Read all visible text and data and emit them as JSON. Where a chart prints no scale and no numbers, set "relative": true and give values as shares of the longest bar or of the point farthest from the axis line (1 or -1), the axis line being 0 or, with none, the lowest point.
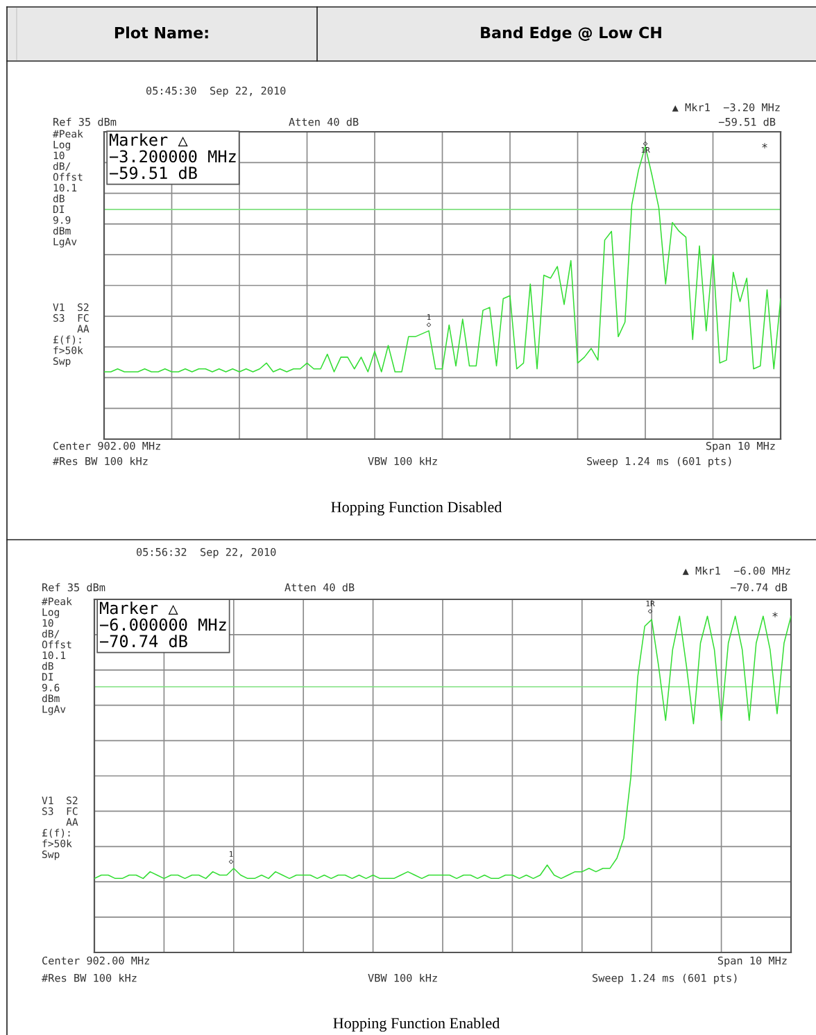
{
  "chart_data": [
    {
      "type": "line",
      "title": "Band Edge @ Low CH",
      "subtitle": "Plot Name:",
      "relative": true,
      "grid": true,
      "categories": [
        null,
        null,
        null,
        null,
        null,
        null,
        null,
        null,
        null,
        null,
        null,
        null,
        null,
        null,
        null,
        null,
        null,
        null,
        null,
        null,
        null,
        null,
        null,
        null,
        null,
        null,
        null,
        null,
        null,
        null,
        null,
        null,
        null,
        null,
        null,
        null,
        null,
        null,
        null,
        null,
        null,
        null,
        null,
        null,
        null,
        null,
        null,
        null,
        null,
        null,
        null,
        null,
        null,
        null,
        null,
        null,
        null,
        null,
        null,
        null,
        null,
        null,
        null,
        null,
        null,
        null,
        null,
        null,
        null,
        null,
        null,
        null,
        null,
        null,
        null,
        null,
        null,
        null,
        null,
        null,
        null,
        null,
        null,
        null,
        null,
        null,
        null,
        null,
        null,
        null,
        null,
        null,
        null,
        null,
        null,
        null,
        null,
        null,
        null,
        null,
        null
      ],
      "ref_lines": [
        {
          "axis": "y",
          "value": 0.785,
          "color": "#7ee07e"
        }
      ],
      "series": [
        {
          "color": "#33dd33",
          "values": [
            0.23,
            0.23,
            0.24,
            0.23,
            0.23,
            0.23,
            0.24,
            0.23,
            0.23,
            0.24,
            0.23,
            0.23,
            0.24,
            0.23,
            0.24,
            0.24,
            0.23,
            0.24,
            0.23,
            0.24,
            0.23,
            0.24,
            0.23,
            0.24,
            0.26,
            0.23,
            0.24,
            0.23,
            0.24,
            0.24,
            0.26,
            0.24,
            0.24,
            0.29,
            0.23,
            0.28,
            0.28,
            0.24,
            0.28,
            0.23,
            0.3,
            0.23,
            0.32,
            0.23,
            0.23,
            0.35,
            0.35,
            0.36,
            0.37,
            0.24,
            0.24,
            0.39,
            0.25,
            0.41,
            0.25,
            0.25,
            0.44,
            0.45,
            0.25,
            0.48,
            0.49,
            0.24,
            0.26,
            0.53,
            0.24,
            0.56,
            0.55,
            0.59,
            0.46,
            0.61,
            0.26,
            0.28,
            0.31,
            0.27,
            0.68,
            0.71,
            0.35,
            0.4,
            0.8,
            0.92,
            1,
            0.9,
            0.79,
            0.53,
            0.74,
            0.71,
            0.69,
            0.34,
            0.66,
            0.37,
            0.63,
            0.26,
            0.27,
            0.57,
            0.47,
            0.55,
            0.24,
            0.25,
            0.51,
            0.24,
            0.48
          ]
        }
      ],
      "annotations": [
        "05:45:30  Sep 22, 2010",
        "▲ Mkr1  −3.20 MHz",
        "−59.51 dB",
        "Ref 35 dBm",
        "Atten 40 dB",
        "#Peak\nLog\n10\ndB/\nOffst\n10.1\ndB\nDI\n9.9\ndBm\nLgAv",
        "V1  S2\nS3  FC\n    AA\n£(f):\nf>50k\nSwp",
        "Marker △\n−3.200000 MHz\n−59.51 dB",
        "Center 902.00 MHz",
        "Span 10 MHz",
        "#Res BW 100 kHz",
        "VBW 100 kHz",
        "Sweep 1.24 ms (601 pts)",
        "Hopping Function Disabled",
        "*",
        "1\n◇",
        "◇\n1R"
      ]
    },
    {
      "type": "line",
      "relative": true,
      "grid": true,
      "categories": [
        null,
        null,
        null,
        null,
        null,
        null,
        null,
        null,
        null,
        null,
        null,
        null,
        null,
        null,
        null,
        null,
        null,
        null,
        null,
        null,
        null,
        null,
        null,
        null,
        null,
        null,
        null,
        null,
        null,
        null,
        null,
        null,
        null,
        null,
        null,
        null,
        null,
        null,
        null,
        null,
        null,
        null,
        null,
        null,
        null,
        null,
        null,
        null,
        null,
        null,
        null,
        null,
        null,
        null,
        null,
        null,
        null,
        null,
        null,
        null,
        null,
        null,
        null,
        null,
        null,
        null,
        null,
        null,
        null,
        null,
        null,
        null,
        null,
        null,
        null,
        null,
        null,
        null,
        null,
        null,
        null,
        null,
        null,
        null,
        null,
        null,
        null,
        null,
        null,
        null,
        null,
        null,
        null,
        null,
        null,
        null,
        null,
        null,
        null,
        null,
        null
      ],
      "ref_lines": [
        {
          "axis": "y",
          "value": 0.79,
          "color": "#7ee07e"
        }
      ],
      "series": [
        {
          "color": "#33dd33",
          "values": [
            0.22,
            0.23,
            0.23,
            0.22,
            0.22,
            0.23,
            0.23,
            0.22,
            0.24,
            0.23,
            0.22,
            0.23,
            0.23,
            0.22,
            0.23,
            0.23,
            0.22,
            0.24,
            0.23,
            0.23,
            0.25,
            0.23,
            0.22,
            0.22,
            0.23,
            0.22,
            0.24,
            0.23,
            0.22,
            0.23,
            0.23,
            0.23,
            0.22,
            0.23,
            0.22,
            0.23,
            0.23,
            0.22,
            0.23,
            0.22,
            0.23,
            0.22,
            0.22,
            0.22,
            0.23,
            0.24,
            0.23,
            0.22,
            0.23,
            0.23,
            0.23,
            0.23,
            0.22,
            0.23,
            0.23,
            0.22,
            0.23,
            0.22,
            0.22,
            0.23,
            0.23,
            0.22,
            0.23,
            0.22,
            0.23,
            0.26,
            0.23,
            0.22,
            0.23,
            0.24,
            0.24,
            0.25,
            0.24,
            0.25,
            0.25,
            0.28,
            0.34,
            0.52,
            0.82,
            0.97,
            0.99,
            0.85,
            0.69,
            0.9,
            1,
            0.85,
            0.68,
            0.92,
            1,
            0.9,
            0.69,
            0.92,
            1,
            0.9,
            0.69,
            0.92,
            1,
            0.9,
            0.71,
            0.92,
            1
          ]
        }
      ],
      "annotations": [
        "05:56:32  Sep 22, 2010",
        "▲ Mkr1  −6.00 MHz",
        "−70.74 dB",
        "Ref 35 dBm",
        "Atten 40 dB",
        "#Peak\nLog\n10\ndB/\nOffst\n10.1\ndB\nDI\n9.6\ndBm\nLgAv",
        "V1  S2\nS3  FC\n    AA\n£(f):\nf>50k\nSwp",
        "Marker △\n−6.000000 MHz\n−70.74 dB",
        "Center 902.00 MHz",
        "Span 10 MHz",
        "#Res BW 100 kHz",
        "VBW 100 kHz",
        "Sweep 1.24 ms (601 pts)",
        "Hopping Function Enabled",
        "*",
        "1\n◇",
        "1R\n◇"
      ]
    }
  ]
}
